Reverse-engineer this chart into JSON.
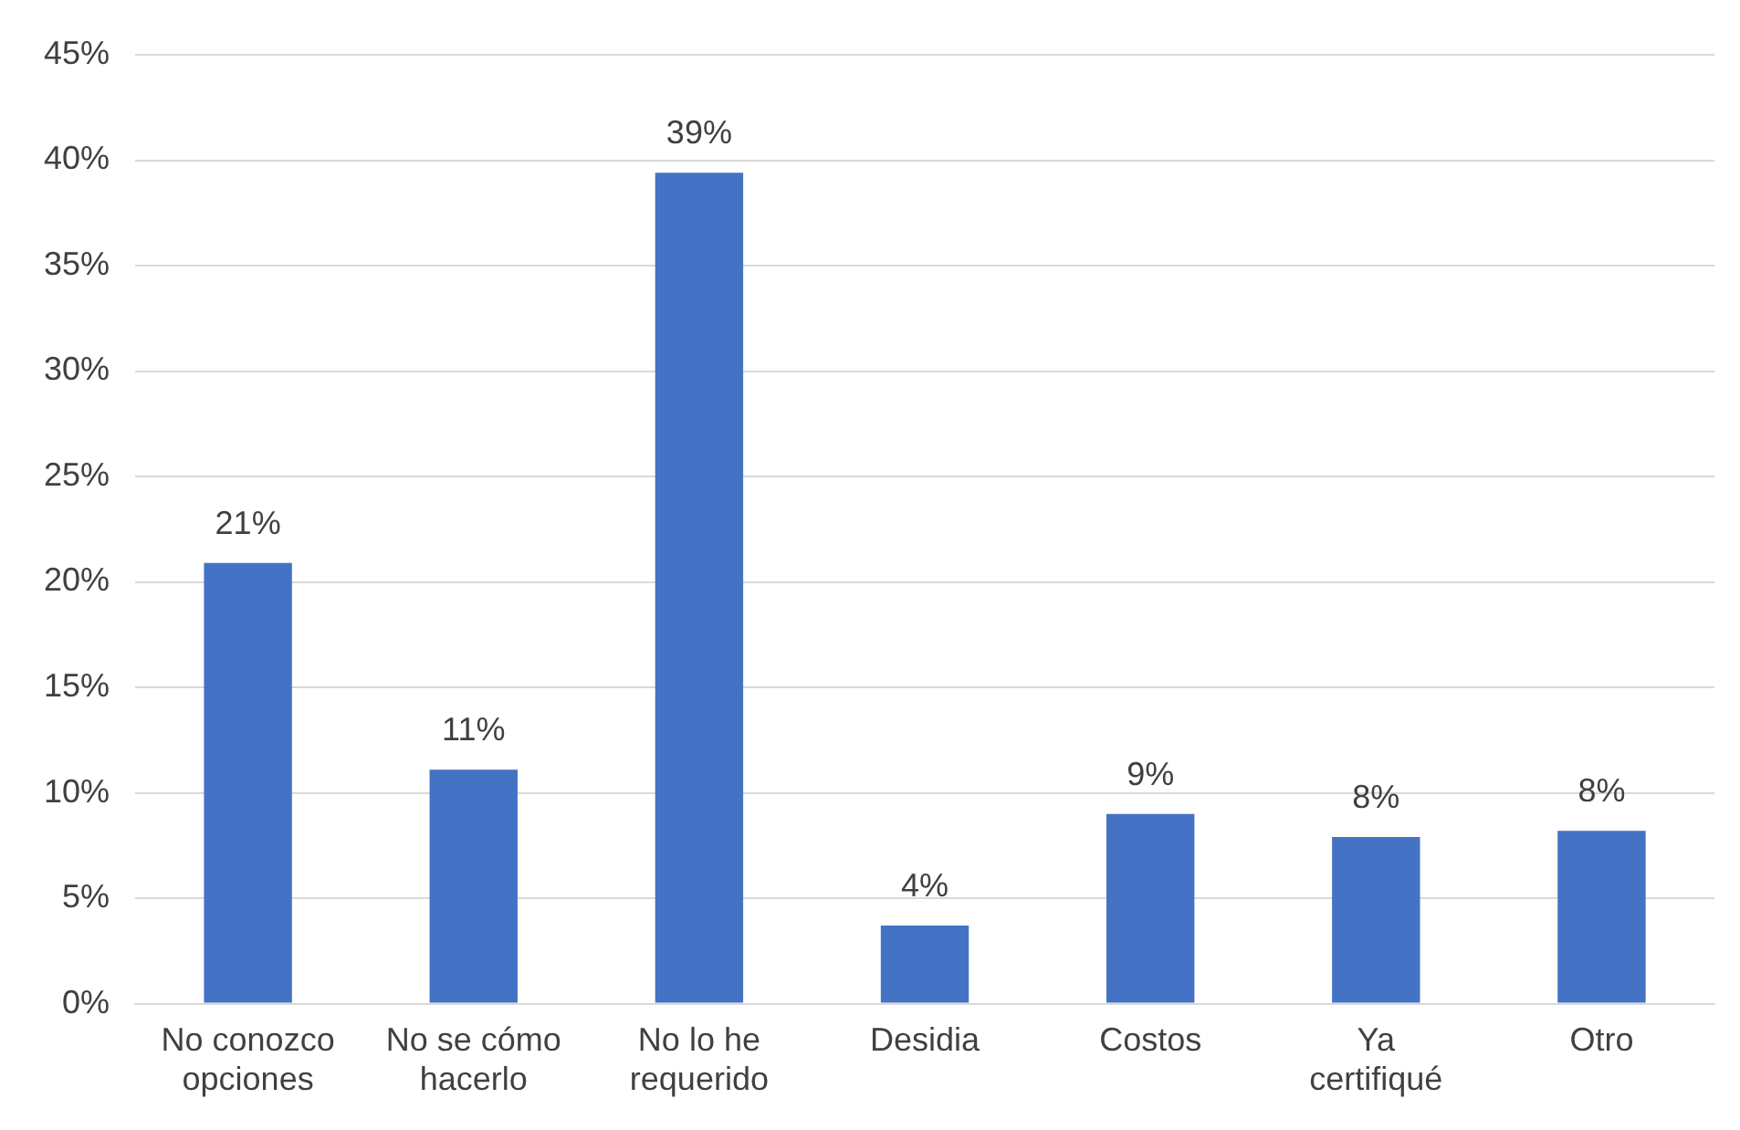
{
  "chart_data": {
    "type": "bar",
    "categories": [
      "No conozco opciones",
      "No se cómo hacerlo",
      "No lo he requerido",
      "Desidia",
      "Costos",
      "Ya certifiqué",
      "Otro"
    ],
    "values": [
      20.9,
      11.1,
      39.4,
      3.7,
      9.0,
      7.9,
      8.2
    ],
    "value_labels": [
      "21%",
      "11%",
      "39%",
      "4%",
      "9%",
      "8%",
      "8%"
    ],
    "color": "#4472c4",
    "ylim": [
      0,
      45
    ],
    "yticks": [
      {
        "value": 0,
        "label": "0%"
      },
      {
        "value": 5,
        "label": "5%"
      },
      {
        "value": 10,
        "label": "10%"
      },
      {
        "value": 15,
        "label": "15%"
      },
      {
        "value": 20,
        "label": "20%"
      },
      {
        "value": 25,
        "label": "25%"
      },
      {
        "value": 30,
        "label": "30%"
      },
      {
        "value": 35,
        "label": "35%"
      },
      {
        "value": 40,
        "label": "40%"
      },
      {
        "value": 45,
        "label": "45%"
      }
    ],
    "grid": "y"
  }
}
